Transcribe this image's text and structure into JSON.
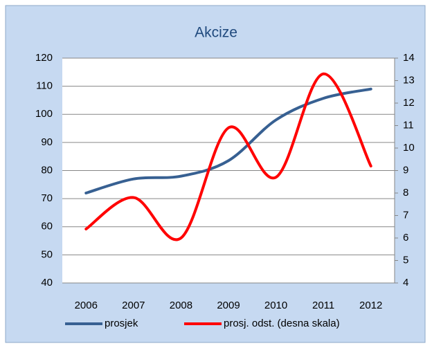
{
  "chart_data": {
    "type": "line",
    "title": "Akcize",
    "categories": [
      "2006",
      "2007",
      "2008",
      "2009",
      "2010",
      "2011",
      "2012"
    ],
    "series": [
      {
        "name": "prosjek",
        "color": "#376092",
        "values": [
          72,
          77,
          78,
          83.5,
          98,
          105.7,
          109
        ]
      },
      {
        "name": "prosj. odst. (desna skala)",
        "color": "#ff0000",
        "axis": "y2",
        "values": [
          6.4,
          7.8,
          6.0,
          10.9,
          8.7,
          13.3,
          9.2
        ]
      }
    ],
    "ylim": [
      40,
      120
    ],
    "yticks": [
      40,
      50,
      60,
      70,
      80,
      90,
      100,
      110,
      120
    ],
    "y2lim": [
      4,
      14
    ],
    "y2ticks": [
      4,
      5,
      6,
      7,
      8,
      9,
      10,
      11,
      12,
      13,
      14
    ],
    "grid": true,
    "legend": "bottom"
  }
}
